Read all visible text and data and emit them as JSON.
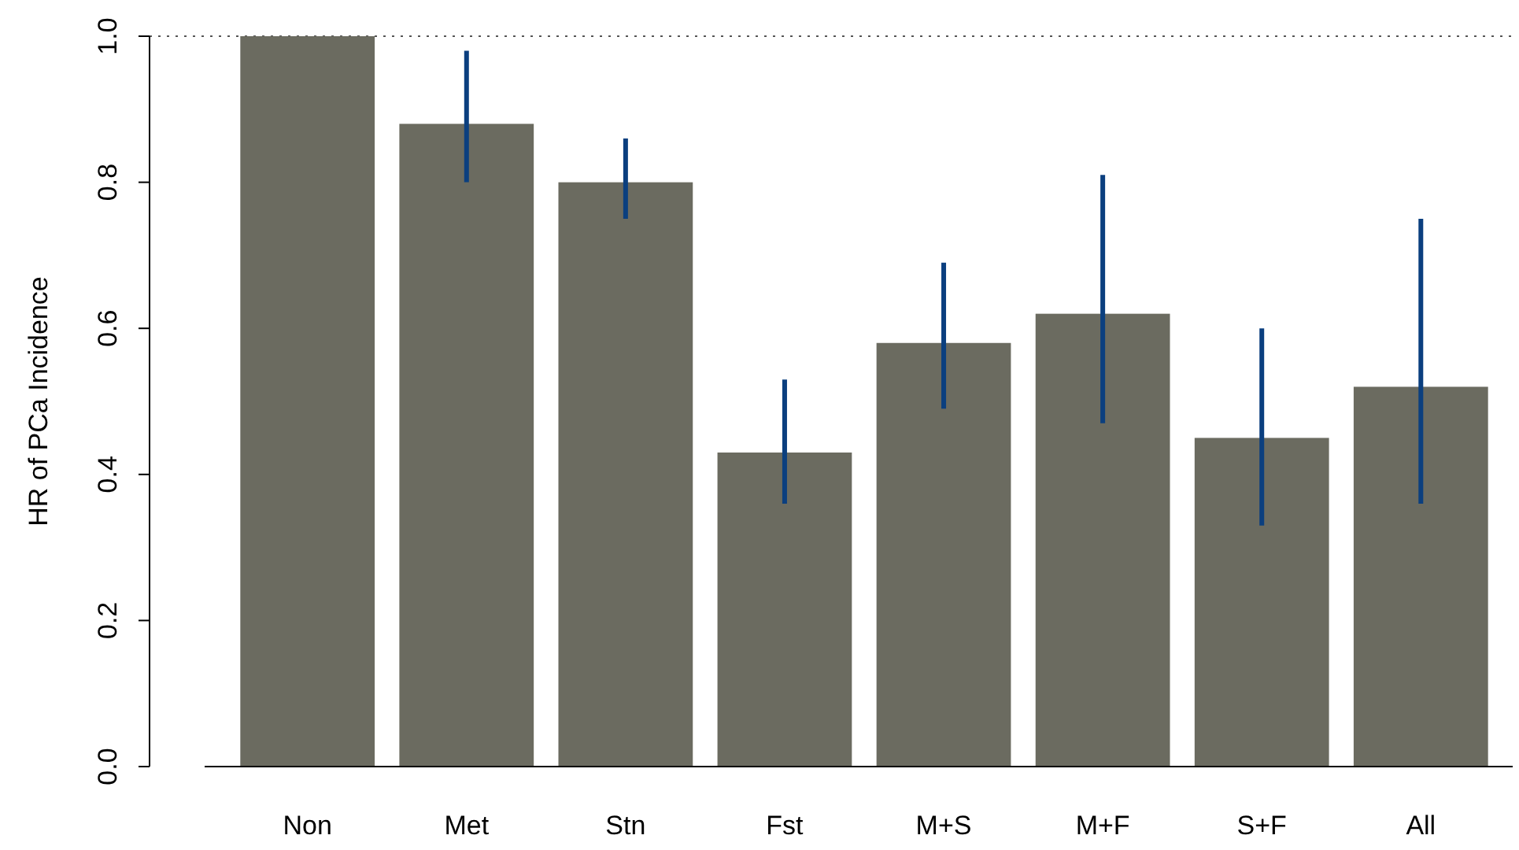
{
  "chart_data": {
    "type": "bar",
    "ylabel": "HR of PCa Incidence",
    "categories": [
      "Non",
      "Met",
      "Stn",
      "Fst",
      "M+S",
      "M+F",
      "S+F",
      "All"
    ],
    "values": [
      1.0,
      0.88,
      0.8,
      0.43,
      0.58,
      0.62,
      0.45,
      0.52
    ],
    "errors": [
      null,
      [
        0.8,
        0.98
      ],
      [
        0.75,
        0.86
      ],
      [
        0.36,
        0.53
      ],
      [
        0.49,
        0.69
      ],
      [
        0.47,
        0.81
      ],
      [
        0.33,
        0.6
      ],
      [
        0.36,
        0.75
      ]
    ],
    "color": "#6b6b60",
    "ylim": [
      0,
      1
    ],
    "yticks": [
      {
        "value": 0,
        "label": "0.0"
      },
      {
        "value": 0.2,
        "label": "0.2"
      },
      {
        "value": 0.4,
        "label": "0.4"
      },
      {
        "value": 0.6,
        "label": "0.6"
      },
      {
        "value": 0.8,
        "label": "0.8"
      },
      {
        "value": 1,
        "label": "1.0"
      }
    ],
    "ref_lines": [
      {
        "axis": "y",
        "value": 1,
        "line_style": "dotted",
        "color": "#555555"
      }
    ]
  }
}
